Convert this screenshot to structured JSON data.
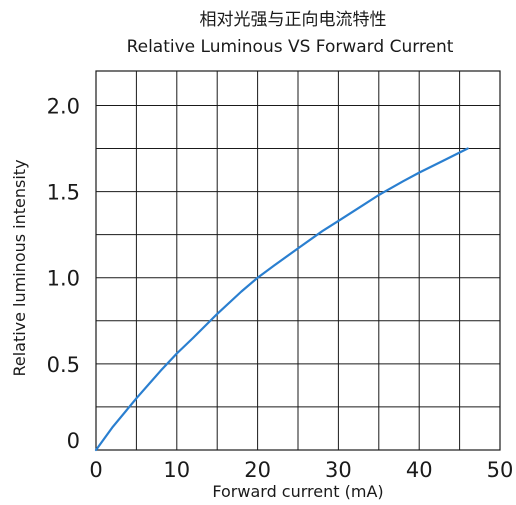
{
  "chart_data": {
    "type": "line",
    "title": "相对光强与正向电流特性",
    "subtitle": "Relative Luminous VS Forward Current",
    "xlabel": "Forward current (mA)",
    "ylabel": "Relative luminous intensity",
    "xlim": [
      0,
      50
    ],
    "ylim": [
      0,
      2.2
    ],
    "x_ticks": [
      0,
      5,
      10,
      15,
      20,
      25,
      30,
      35,
      40,
      45,
      50
    ],
    "x_tick_labels": [
      "0",
      "",
      "10",
      "",
      "20",
      "",
      "30",
      "",
      "40",
      "",
      "50"
    ],
    "y_ticks": [
      0,
      0.25,
      0.5,
      0.75,
      1.0,
      1.25,
      1.5,
      1.75,
      2.0
    ],
    "y_tick_labels": [
      "0",
      "",
      "0.5",
      "",
      "1.0",
      "",
      "1.5",
      "",
      "2.0"
    ],
    "grid": true,
    "legend": "none",
    "series": [
      {
        "color": "#2a7fd0",
        "x": [
          0,
          2,
          5,
          8,
          10,
          12,
          15,
          18,
          20,
          22,
          25,
          28,
          30,
          33,
          35,
          38,
          40,
          43,
          46
        ],
        "y": [
          0,
          0.13,
          0.3,
          0.46,
          0.56,
          0.65,
          0.79,
          0.92,
          1.0,
          1.07,
          1.17,
          1.27,
          1.33,
          1.42,
          1.48,
          1.56,
          1.61,
          1.68,
          1.75
        ]
      }
    ]
  }
}
